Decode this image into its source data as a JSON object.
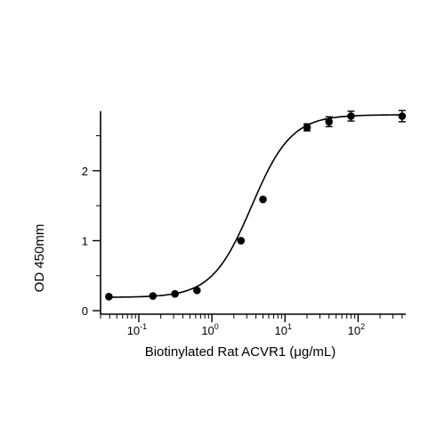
{
  "chart_data": {
    "type": "scatter",
    "xscale": "log",
    "xlabel": "Biotinylated Rat ACVR1 (μg/mL)",
    "ylabel": "OD 450mm",
    "xlim": [
      0.03,
      450
    ],
    "ylim": [
      -0.05,
      2.85
    ],
    "x_ticks": [
      {
        "value": 0.1,
        "base": "10",
        "exp": "-1"
      },
      {
        "value": 1,
        "base": "10",
        "exp": "0"
      },
      {
        "value": 10,
        "base": "10",
        "exp": "1"
      },
      {
        "value": 100,
        "base": "10",
        "exp": "2"
      }
    ],
    "y_ticks": [
      {
        "value": 0,
        "label": "0"
      },
      {
        "value": 1,
        "label": "1"
      },
      {
        "value": 2,
        "label": "2"
      }
    ],
    "series": [
      {
        "x": [
          0.039,
          0.156,
          0.3125,
          0.625,
          2.5,
          5,
          20,
          40,
          80,
          400
        ],
        "y": [
          0.2,
          0.21,
          0.24,
          0.29,
          1.0,
          1.59,
          2.62,
          2.7,
          2.78,
          2.78
        ],
        "err": [
          0.02,
          0.02,
          0.02,
          0.02,
          0.02,
          0.02,
          0.05,
          0.07,
          0.07,
          0.08
        ]
      }
    ],
    "fit_curve": {
      "model": "4PL",
      "bottom": 0.19,
      "top": 2.8,
      "ec50": 3.5,
      "hill": 1.6
    },
    "grid": false,
    "legend": "none",
    "colors": {
      "marker": "#000000",
      "line": "#000000"
    }
  }
}
